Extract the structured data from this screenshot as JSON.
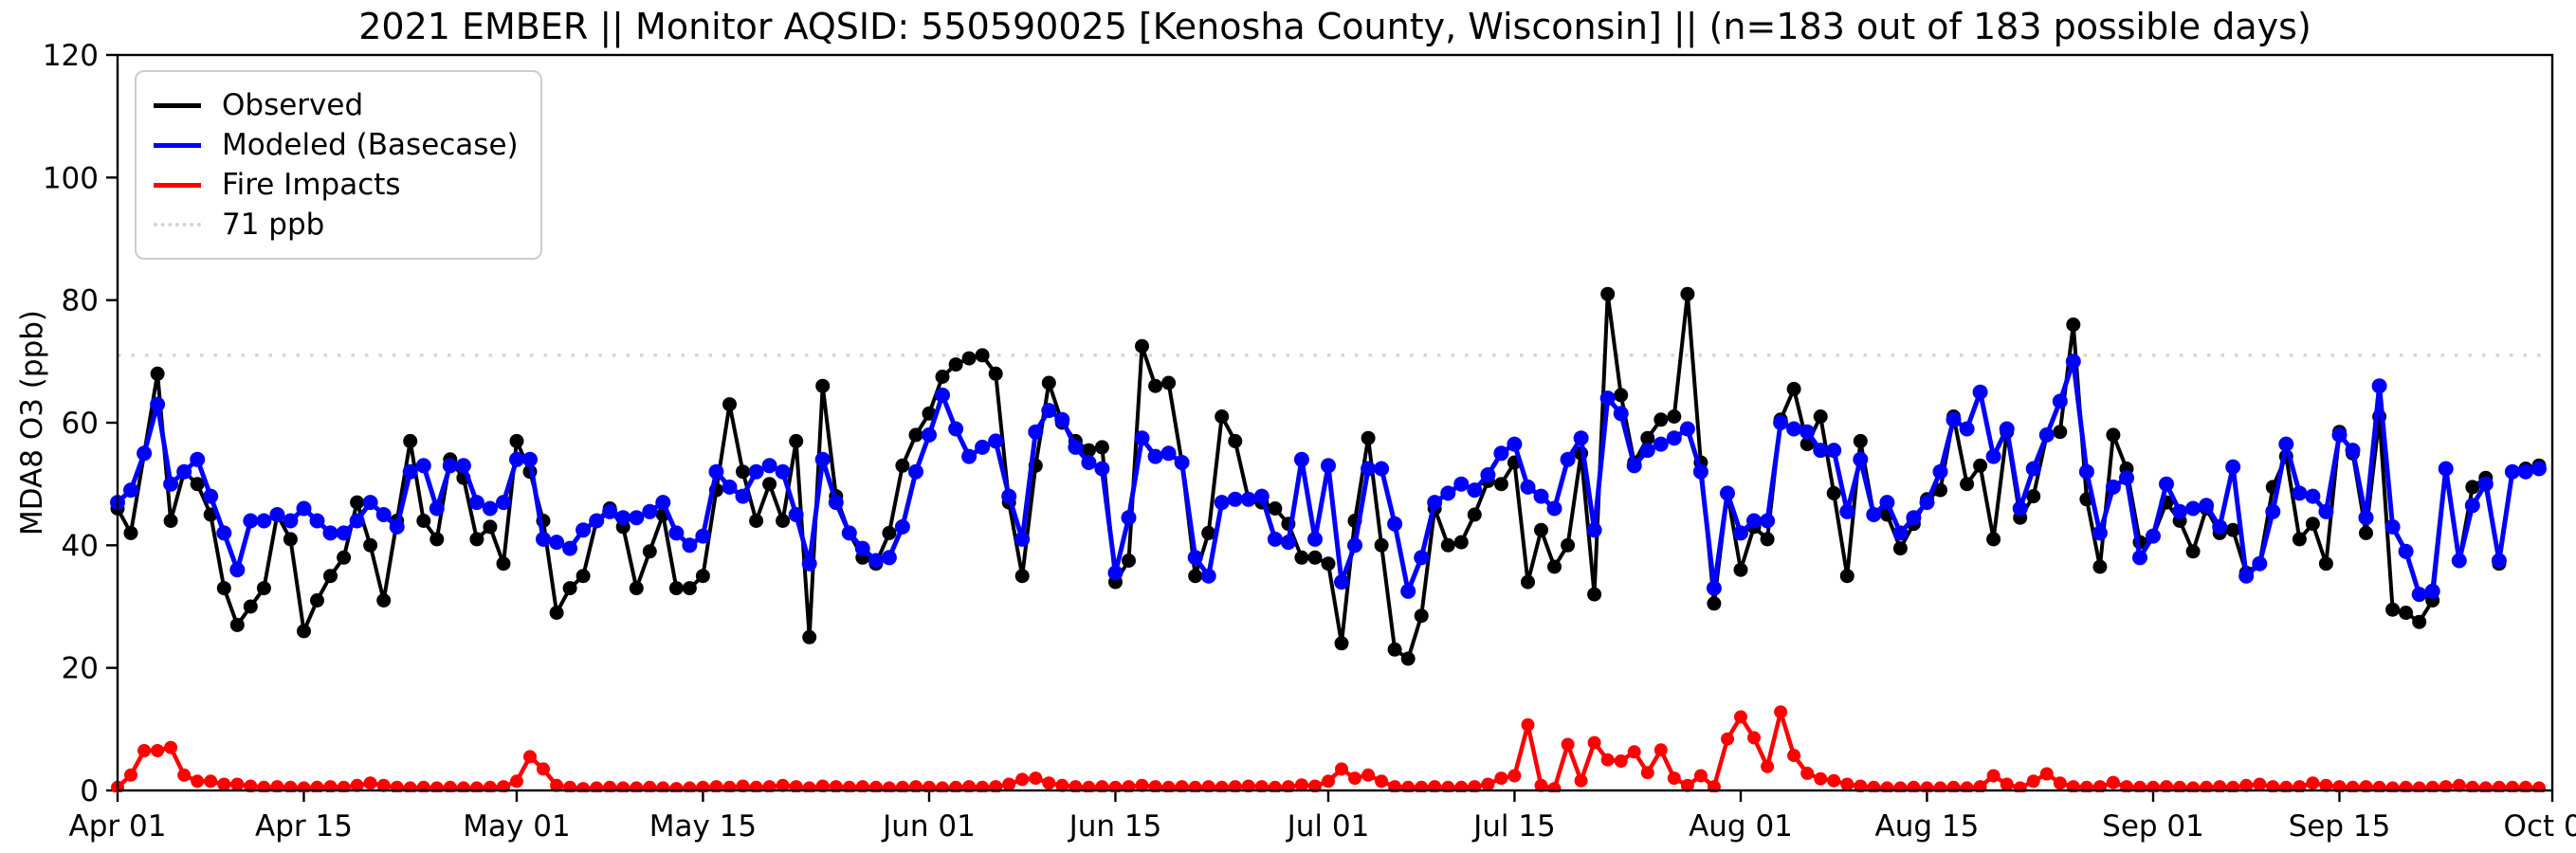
{
  "title": "2021 EMBER || Monitor AQSID: 550590025 [Kenosha County, Wisconsin] || (n=183 out of 183 possible days)",
  "y_axis": {
    "label": "MDA8 O3 (ppb)",
    "ticks": [
      0,
      20,
      40,
      60,
      80,
      100,
      120
    ],
    "min": 0,
    "max": 120
  },
  "x_axis": {
    "total_days": 183,
    "ticks": [
      {
        "label": "Apr 01",
        "day": 0
      },
      {
        "label": "Apr 15",
        "day": 14
      },
      {
        "label": "May 01",
        "day": 30
      },
      {
        "label": "May 15",
        "day": 44
      },
      {
        "label": "Jun 01",
        "day": 61
      },
      {
        "label": "Jun 15",
        "day": 75
      },
      {
        "label": "Jul 01",
        "day": 91
      },
      {
        "label": "Jul 15",
        "day": 105
      },
      {
        "label": "Aug 01",
        "day": 122
      },
      {
        "label": "Aug 15",
        "day": 136
      },
      {
        "label": "Sep 01",
        "day": 153
      },
      {
        "label": "Sep 15",
        "day": 167
      },
      {
        "label": "Oct 01",
        "day": 183
      }
    ]
  },
  "legend": [
    {
      "label": "Observed",
      "color": "#000000",
      "style": "solid"
    },
    {
      "label": "Modeled (Basecase)",
      "color": "#0000ff",
      "style": "solid"
    },
    {
      "label": "Fire Impacts",
      "color": "#ff0000",
      "style": "solid"
    },
    {
      "label": "71 ppb",
      "color": "#d3d3d3",
      "style": "dotted"
    }
  ],
  "chart_data": {
    "type": "line",
    "title": "2021 EMBER || Monitor AQSID: 550590025 [Kenosha County, Wisconsin] || (n=183 out of 183 possible days)",
    "xlabel": "",
    "ylabel": "MDA8 O3 (ppb)",
    "ylim": [
      0,
      120
    ],
    "x_range": [
      "Apr 01",
      "Oct 01"
    ],
    "n_days": 183,
    "threshold": {
      "value": 71,
      "label": "71 ppb",
      "color": "#d3d3d3"
    },
    "legend_position": "upper left",
    "grid": false,
    "series": [
      {
        "name": "Observed",
        "color": "#000000",
        "values": [
          46,
          42,
          55,
          68,
          44,
          52,
          50,
          45,
          33,
          27,
          30,
          33,
          45,
          41,
          26,
          31,
          35,
          38,
          47,
          40,
          31,
          44,
          57,
          44,
          41,
          54,
          51,
          41,
          43,
          37,
          57,
          52,
          44,
          29,
          33,
          35,
          44,
          46,
          43,
          33,
          39,
          45,
          33,
          33,
          35,
          49,
          63,
          52,
          44,
          50,
          44,
          57,
          25,
          66,
          48,
          42,
          38,
          37,
          42,
          53,
          58,
          61.5,
          67.5,
          69.5,
          70.5,
          71,
          68,
          47,
          35,
          53,
          66.5,
          60,
          57,
          55.5,
          56,
          34,
          37.5,
          72.5,
          66,
          66.5,
          53.5,
          35,
          42,
          61,
          57,
          47.5,
          47,
          46,
          43.5,
          38,
          38,
          37,
          24,
          44,
          57.5,
          40,
          23,
          21.5,
          28.5,
          46,
          40,
          40.5,
          45,
          50.5,
          50,
          53.5,
          34,
          42.5,
          36.5,
          40,
          55,
          32,
          81,
          64.5,
          53.5,
          57.5,
          60.5,
          61,
          81,
          53.5,
          30.5,
          48.5,
          36,
          43,
          41,
          60.5,
          65.5,
          56.5,
          61,
          48.5,
          35,
          57,
          45,
          45,
          39.5,
          43.5,
          47.5,
          49,
          61,
          50,
          53,
          41,
          58.5,
          44.5,
          48,
          58,
          58.5,
          76,
          47.5,
          36.5,
          58,
          52.5,
          40.5,
          41.5,
          47,
          44,
          39,
          46,
          42,
          42.5,
          35.5,
          37,
          49.5,
          54.5,
          41,
          43.5,
          37,
          58.5,
          55,
          42,
          61,
          29.5,
          29,
          27.5,
          31,
          52.5,
          37.5,
          49.5,
          51,
          37,
          52,
          52.5,
          53
        ]
      },
      {
        "name": "Modeled (Basecase)",
        "color": "#0000ff",
        "values": [
          47,
          49,
          55,
          63,
          50,
          52,
          54,
          48,
          42,
          36,
          44,
          44,
          45,
          44,
          46,
          44,
          42,
          42,
          44,
          47,
          45,
          43,
          52,
          53,
          46,
          53,
          53,
          47,
          46,
          47,
          54,
          54,
          41,
          40.5,
          39.5,
          42.5,
          44,
          45.5,
          44.5,
          44.5,
          45.5,
          47,
          42,
          40,
          41.5,
          52,
          49.5,
          48,
          52,
          53,
          52,
          45,
          37,
          54,
          47,
          42,
          39.5,
          37.5,
          38,
          43,
          52,
          58,
          64.5,
          59,
          54.5,
          56,
          57,
          48,
          41,
          58.5,
          62,
          60.5,
          56,
          53.5,
          52.5,
          35.5,
          44.5,
          57.5,
          54.5,
          55,
          53.5,
          38,
          35,
          47,
          47.5,
          47.5,
          48,
          41,
          40.5,
          54,
          41,
          53,
          34,
          40,
          52.5,
          52.5,
          43.5,
          32.5,
          38,
          47,
          48.5,
          50,
          49,
          51.5,
          55,
          56.5,
          49.5,
          48,
          46,
          54,
          57.5,
          42.5,
          64,
          61.5,
          53,
          55.5,
          56.5,
          57.5,
          59,
          52,
          33,
          48.5,
          42,
          44,
          44,
          60,
          59,
          58.5,
          55.5,
          55.5,
          45.5,
          54,
          45,
          47,
          42,
          44.5,
          47,
          52,
          60.5,
          59,
          65,
          54.5,
          59,
          46,
          52.5,
          58,
          63.5,
          70,
          52,
          42,
          49.5,
          51,
          38,
          41.5,
          50,
          45.5,
          46,
          46.5,
          43,
          52.8,
          35,
          37,
          45.5,
          56.5,
          48.5,
          48,
          45.5,
          58,
          55.5,
          44.5,
          66,
          43,
          39,
          32,
          32.5,
          52.5,
          37.5,
          46.5,
          50,
          37.5,
          52,
          52,
          52.5
        ]
      },
      {
        "name": "Fire Impacts",
        "color": "#ff0000",
        "values": [
          0.5,
          2.5,
          6.5,
          6.5,
          7,
          2.5,
          1.5,
          1.5,
          1,
          1,
          0.7,
          0.5,
          0.6,
          0.5,
          0.4,
          0.5,
          0.6,
          0.5,
          0.8,
          1.2,
          0.8,
          0.5,
          0.4,
          0.5,
          0.4,
          0.5,
          0.4,
          0.4,
          0.5,
          0.6,
          1.5,
          5.5,
          3.5,
          0.8,
          0.5,
          0.3,
          0.4,
          0.5,
          0.4,
          0.4,
          0.5,
          0.4,
          0.3,
          0.4,
          0.5,
          0.6,
          0.5,
          0.7,
          0.5,
          0.6,
          0.8,
          0.6,
          0.4,
          0.7,
          0.6,
          0.5,
          0.6,
          0.5,
          0.4,
          0.5,
          0.6,
          0.5,
          0.4,
          0.5,
          0.6,
          0.5,
          0.6,
          1.0,
          1.8,
          2.0,
          1.2,
          0.8,
          0.6,
          0.5,
          0.6,
          0.5,
          0.6,
          0.8,
          0.6,
          0.5,
          0.6,
          0.5,
          0.6,
          0.5,
          0.6,
          0.7,
          0.6,
          0.5,
          0.6,
          0.9,
          0.7,
          1.5,
          3.5,
          2.0,
          2.5,
          1.5,
          0.6,
          0.5,
          0.5,
          0.6,
          0.5,
          0.5,
          0.6,
          1.0,
          2.0,
          2.4,
          10.7,
          0.8,
          0.3,
          7.5,
          1.6,
          7.8,
          5.0,
          4.8,
          6.3,
          2.9,
          6.6,
          2.0,
          0.8,
          2.4,
          0.6,
          8.4,
          12.0,
          8.6,
          3.9,
          12.8,
          5.7,
          2.8,
          1.9,
          1.6,
          1.0,
          0.7,
          0.5,
          0.4,
          0.4,
          0.5,
          0.4,
          0.4,
          0.5,
          0.4,
          0.6,
          2.4,
          1.0,
          0.4,
          1.5,
          2.7,
          1.2,
          0.6,
          0.5,
          0.6,
          1.3,
          0.6,
          0.5,
          0.5,
          0.6,
          0.5,
          0.4,
          0.5,
          0.6,
          0.5,
          0.8,
          1.0,
          0.6,
          0.5,
          0.6,
          1.2,
          0.8,
          0.6,
          0.5,
          0.6,
          0.5,
          0.4,
          0.5,
          0.4,
          0.5,
          0.6,
          0.8,
          0.5,
          0.4,
          0.5,
          0.5,
          0.5,
          0.4
        ]
      }
    ]
  }
}
